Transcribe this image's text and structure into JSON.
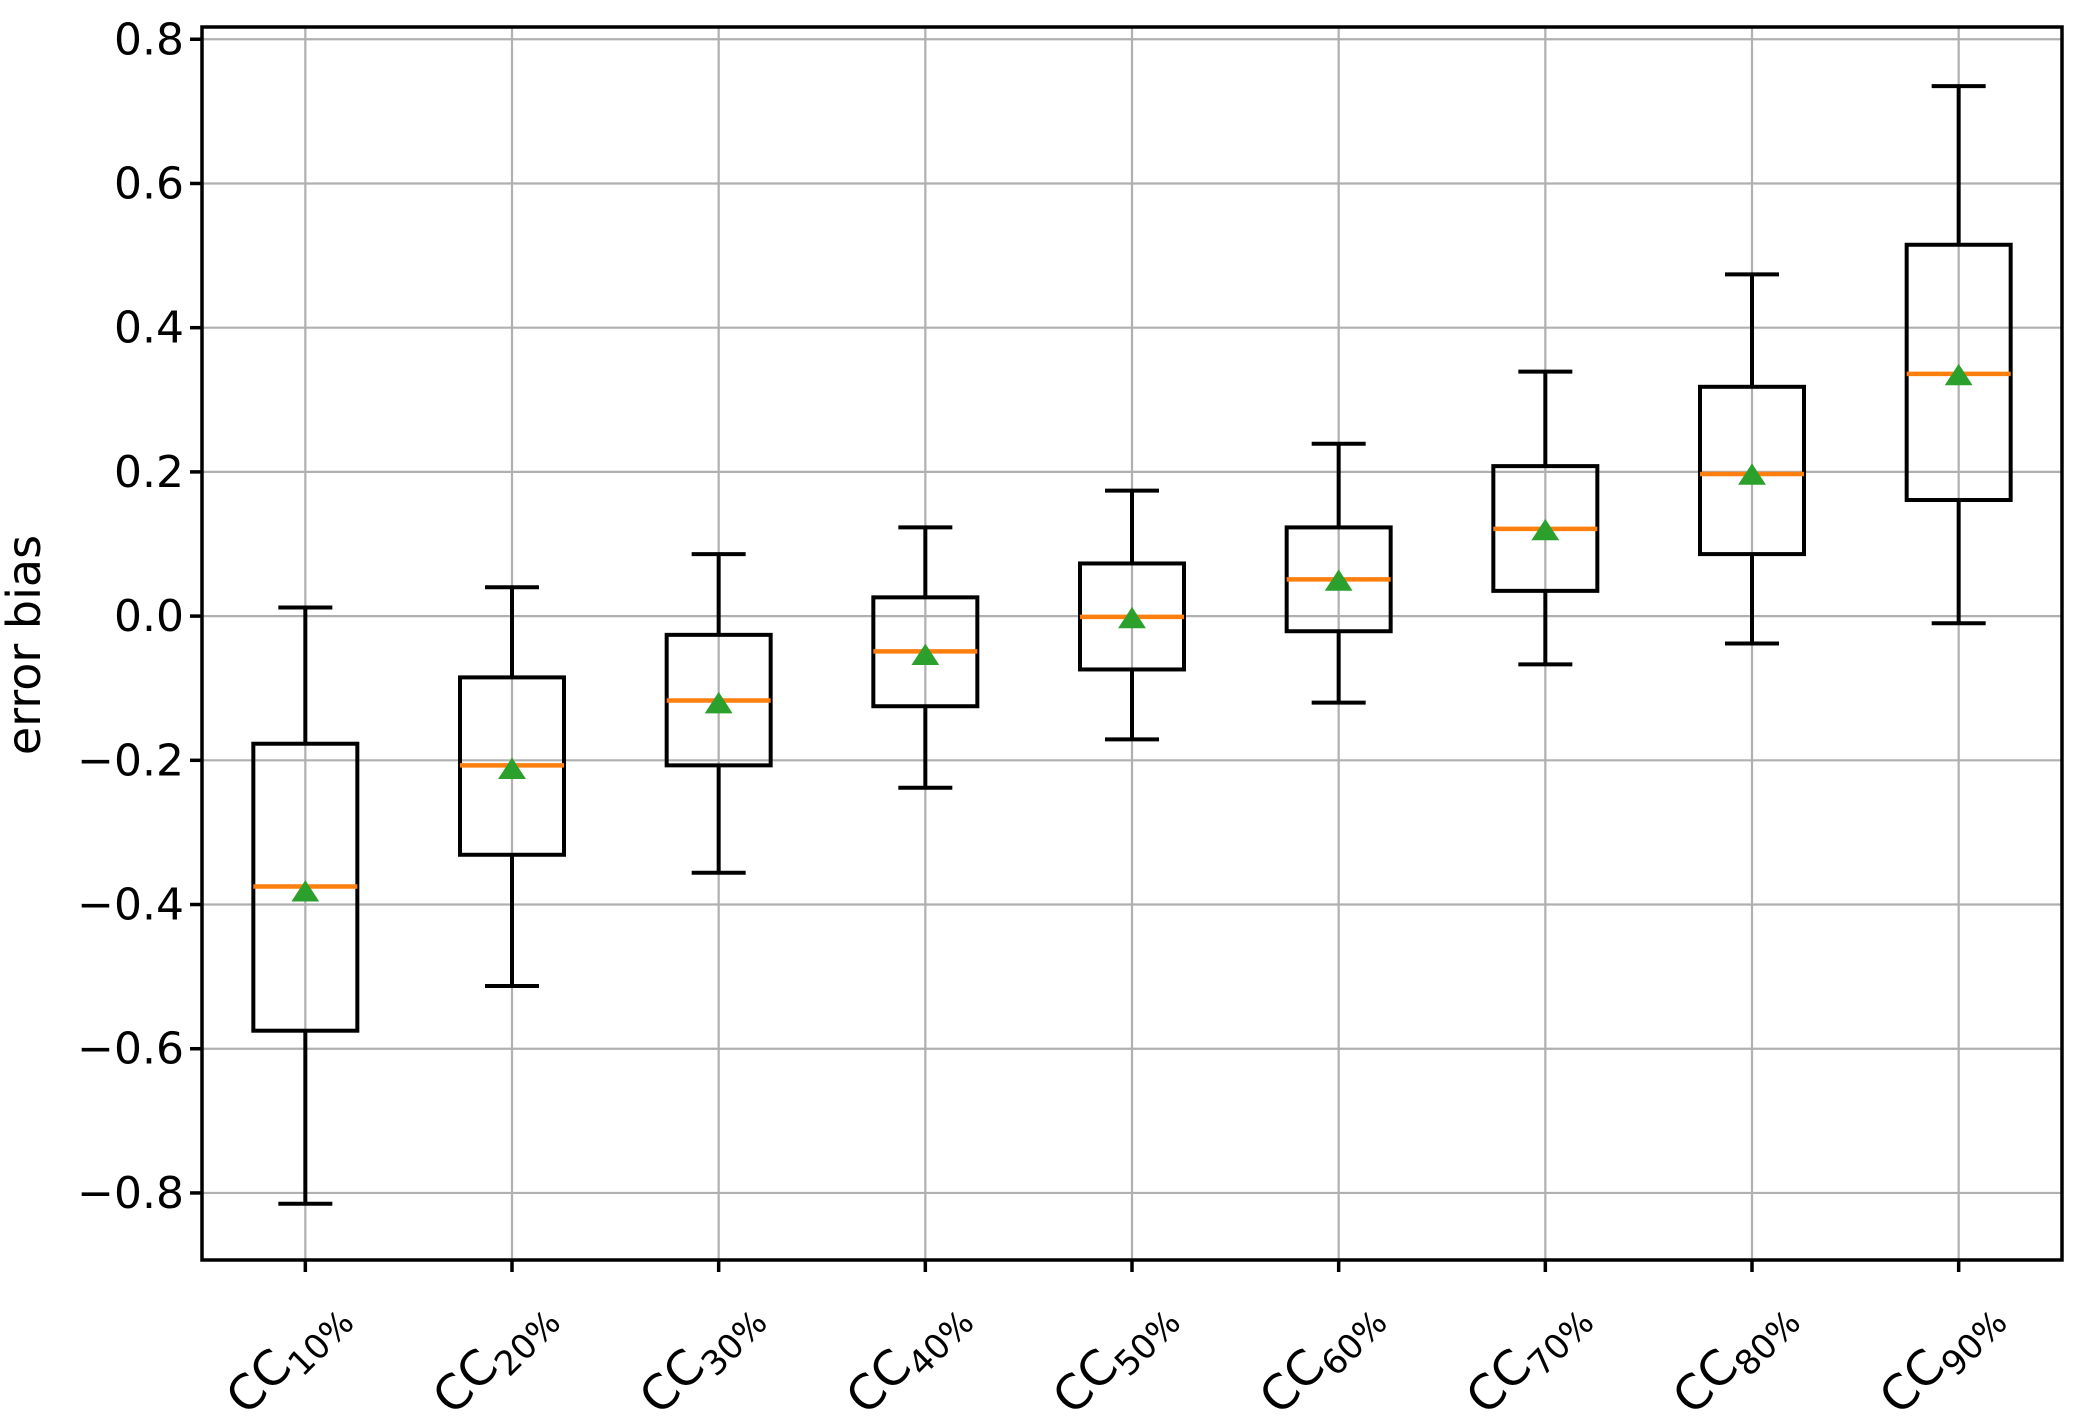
{
  "chart_data": {
    "type": "box",
    "title": "",
    "xlabel": "",
    "ylabel": "error bias",
    "grid": true,
    "legend": false,
    "orientation": "vertical",
    "ylim": [
      -0.893,
      0.817
    ],
    "yticks": [
      {
        "value": 0.8,
        "label": "0.8"
      },
      {
        "value": 0.6,
        "label": "0.6"
      },
      {
        "value": 0.4,
        "label": "0.4"
      },
      {
        "value": 0.2,
        "label": "0.2"
      },
      {
        "value": 0.0,
        "label": "0.0"
      },
      {
        "value": -0.2,
        "label": "−0.2"
      },
      {
        "value": -0.4,
        "label": "−0.4"
      },
      {
        "value": -0.6,
        "label": "−0.6"
      },
      {
        "value": -0.8,
        "label": "−0.8"
      }
    ],
    "categories": [
      {
        "label": "CC10%",
        "prefix": "CC",
        "sub": "10%"
      },
      {
        "label": "CC20%",
        "prefix": "CC",
        "sub": "20%"
      },
      {
        "label": "CC30%",
        "prefix": "CC",
        "sub": "30%"
      },
      {
        "label": "CC40%",
        "prefix": "CC",
        "sub": "40%"
      },
      {
        "label": "CC50%",
        "prefix": "CC",
        "sub": "50%"
      },
      {
        "label": "CC60%",
        "prefix": "CC",
        "sub": "60%"
      },
      {
        "label": "CC70%",
        "prefix": "CC",
        "sub": "70%"
      },
      {
        "label": "CC80%",
        "prefix": "CC",
        "sub": "80%"
      },
      {
        "label": "CC90%",
        "prefix": "CC",
        "sub": "90%"
      }
    ],
    "series": [
      {
        "name": "CC10%",
        "whislo": -0.815,
        "q1": -0.575,
        "med": -0.375,
        "mean": -0.382,
        "q3": -0.177,
        "whishi": 0.012,
        "fliers": []
      },
      {
        "name": "CC20%",
        "whislo": -0.513,
        "q1": -0.331,
        "med": -0.207,
        "mean": -0.212,
        "q3": -0.085,
        "whishi": 0.04,
        "fliers": []
      },
      {
        "name": "CC30%",
        "whislo": -0.356,
        "q1": -0.207,
        "med": -0.117,
        "mean": -0.121,
        "q3": -0.026,
        "whishi": 0.086,
        "fliers": []
      },
      {
        "name": "CC40%",
        "whislo": -0.238,
        "q1": -0.125,
        "med": -0.049,
        "mean": -0.054,
        "q3": 0.026,
        "whishi": 0.123,
        "fliers": []
      },
      {
        "name": "CC50%",
        "whislo": -0.171,
        "q1": -0.074,
        "med": -0.001,
        "mean": -0.003,
        "q3": 0.073,
        "whishi": 0.174,
        "fliers": []
      },
      {
        "name": "CC60%",
        "whislo": -0.12,
        "q1": -0.021,
        "med": 0.051,
        "mean": 0.049,
        "q3": 0.123,
        "whishi": 0.239,
        "fliers": []
      },
      {
        "name": "CC70%",
        "whislo": -0.067,
        "q1": 0.035,
        "med": 0.121,
        "mean": 0.119,
        "q3": 0.208,
        "whishi": 0.339,
        "fliers": []
      },
      {
        "name": "CC80%",
        "whislo": -0.038,
        "q1": 0.086,
        "med": 0.197,
        "mean": 0.196,
        "q3": 0.318,
        "whishi": 0.474,
        "fliers": []
      },
      {
        "name": "CC90%",
        "whislo": -0.01,
        "q1": 0.161,
        "med": 0.336,
        "mean": 0.334,
        "q3": 0.515,
        "whishi": 0.735,
        "fliers": []
      }
    ],
    "mean_marker": "triangle-up",
    "colors": {
      "box_line": "#000000",
      "median": "#ff7f0e",
      "mean_marker": "#2ca02c",
      "grid": "#b0b0b0",
      "spine": "#000000",
      "background": "#ffffff"
    }
  }
}
